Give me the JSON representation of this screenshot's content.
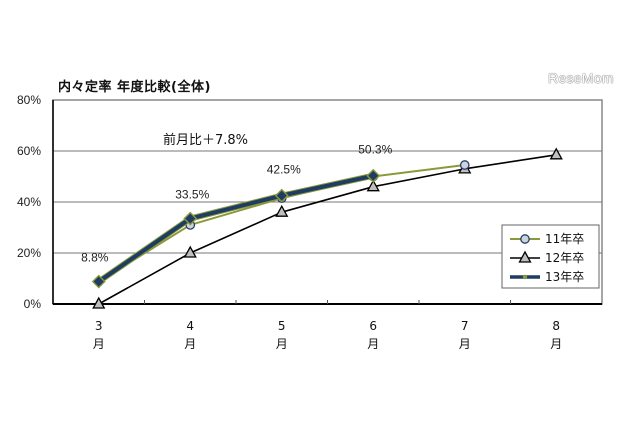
{
  "header": {
    "title": "内々定率  年度比較(全体)",
    "brand": "ReseMom"
  },
  "annotation": "前月比＋7.8%",
  "chart_data": {
    "type": "line",
    "title": "内々定率  年度比較(全体)",
    "xlabel": "",
    "ylabel": "",
    "categories": [
      "3月",
      "4月",
      "5月",
      "6月",
      "7月",
      "8月"
    ],
    "x_tick_numbers": [
      "3",
      "4",
      "5",
      "6",
      "7",
      "8"
    ],
    "x_tick_unit": "月",
    "y_ticks": [
      "0%",
      "20%",
      "40%",
      "60%",
      "80%"
    ],
    "ylim": [
      0,
      80
    ],
    "grid": true,
    "legend_position": "right-inside",
    "series": [
      {
        "name": "11年卒",
        "values": [
          8.8,
          31.0,
          41.5,
          50.0,
          54.5,
          null
        ],
        "color": "#8a9a3a",
        "marker": "circle"
      },
      {
        "name": "12年卒",
        "values": [
          0.0,
          20.0,
          36.0,
          46.0,
          53.0,
          58.5
        ],
        "color": "#000000",
        "marker": "triangle"
      },
      {
        "name": "13年卒",
        "values": [
          8.8,
          33.5,
          42.5,
          50.3,
          null,
          null
        ],
        "color": "#1f3d63",
        "marker": "diamond"
      }
    ],
    "data_labels": [
      {
        "series": "13年卒",
        "category": "3月",
        "text": "8.8%"
      },
      {
        "series": "13年卒",
        "category": "4月",
        "text": "33.5%"
      },
      {
        "series": "13年卒",
        "category": "5月",
        "text": "42.5%"
      },
      {
        "series": "13年卒",
        "category": "6月",
        "text": "50.3%"
      }
    ],
    "annotations": [
      "前月比＋7.8%"
    ]
  }
}
